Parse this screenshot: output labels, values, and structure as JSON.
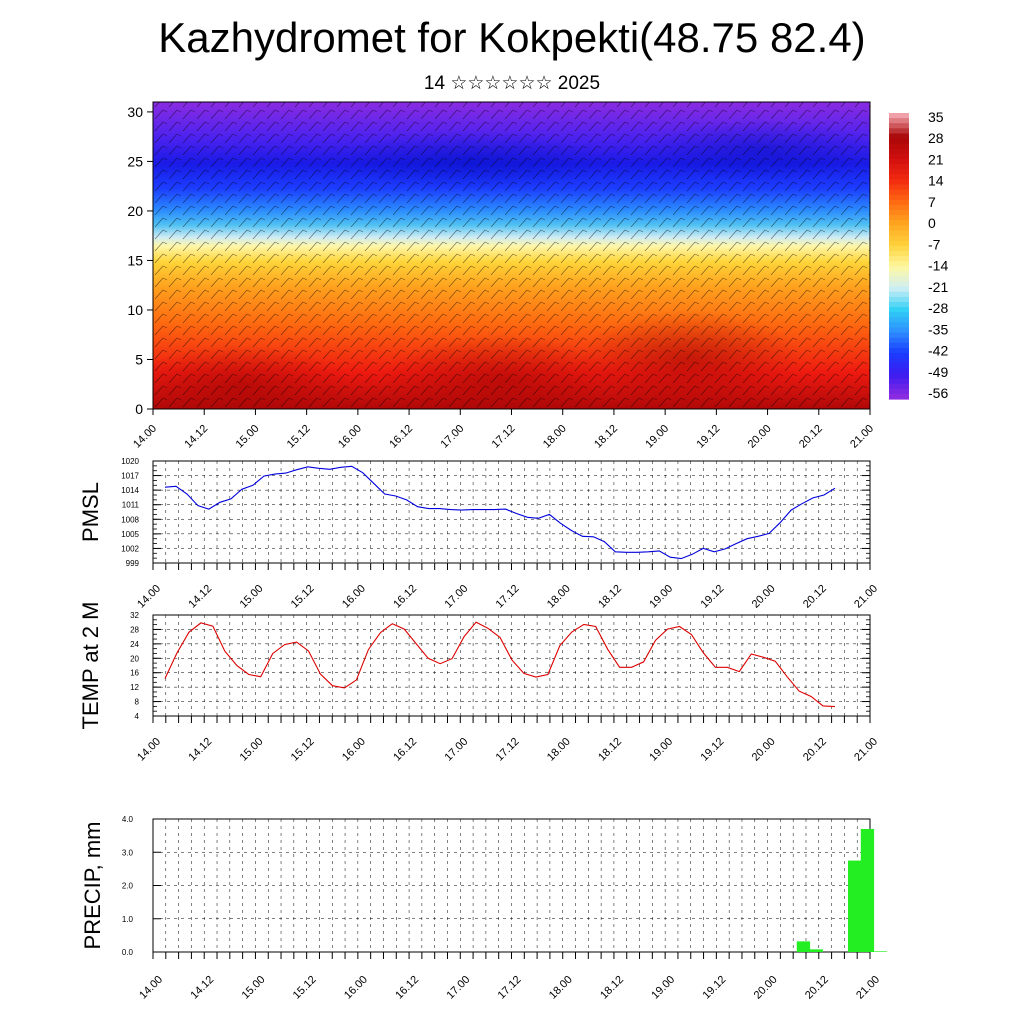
{
  "header": {
    "title": "Kazhydromet for Kokpekti(48.75 82.4)",
    "subtitle": "14 ☆☆☆☆☆☆ 2025"
  },
  "time_labels": [
    "14.00",
    "14.12",
    "15.00",
    "15.12",
    "16.00",
    "16.12",
    "17.00",
    "17.12",
    "18.00",
    "18.12",
    "19.00",
    "19.12",
    "20.00",
    "20.12",
    "21.00"
  ],
  "chart_data": [
    {
      "type": "heatmap",
      "id": "cross-section",
      "y_ticks": [
        0,
        5,
        10,
        15,
        20,
        25,
        30
      ],
      "ylim": [
        0,
        31
      ],
      "colorbar_labels": [
        "35",
        "28",
        "21",
        "14",
        "7",
        "0",
        "-7",
        "-14",
        "-21",
        "-28",
        "-35",
        "-42",
        "-49",
        "-56"
      ],
      "colormap": [
        "#8a2be2",
        "#3d1cf0",
        "#1a3cff",
        "#2e8fff",
        "#2fd0f5",
        "#cfeef5",
        "#fff8a0",
        "#ffd23c",
        "#ffa520",
        "#ff6a12",
        "#f22a10",
        "#d20f0f",
        "#a80606"
      ]
    },
    {
      "type": "line",
      "id": "pmsl",
      "ylabel": "PMSL",
      "y_ticks": [
        999,
        1002,
        1005,
        1008,
        1011,
        1014,
        1017,
        1020
      ],
      "ylim": [
        999,
        1020
      ],
      "color": "#0000dd",
      "values": [
        1014.6,
        1014.8,
        1013.2,
        1010.8,
        1010.1,
        1011.5,
        1012.2,
        1014.2,
        1015,
        1016.9,
        1017.3,
        1017.5,
        1018.2,
        1018.8,
        1018.5,
        1018.3,
        1018.7,
        1018.9,
        1017.6,
        1015.4,
        1013.2,
        1012.8,
        1012,
        1010.6,
        1010.2,
        1010.2,
        1010,
        1009.9,
        1010,
        1010,
        1010,
        1010.1,
        1009.2,
        1008.4,
        1008.2,
        1009,
        1007.2,
        1005.7,
        1004.5,
        1004.4,
        1003.4,
        1001.3,
        1001.2,
        1001.2,
        1001.3,
        1001.5,
        1000.2,
        999.9,
        1000.8,
        1002,
        1001.3,
        1001.9,
        1003,
        1004,
        1004.5,
        1005.1,
        1007.3,
        1009.9,
        1011.2,
        1012.4,
        1013,
        1014.4
      ]
    },
    {
      "type": "line",
      "id": "temp2m",
      "ylabel": "TEMP at 2 M",
      "y_ticks": [
        4,
        8,
        12,
        16,
        20,
        24,
        28,
        32
      ],
      "ylim": [
        4,
        32
      ],
      "color": "#dd0000",
      "values": [
        14.4,
        21.5,
        27.2,
        29.8,
        28.9,
        22,
        18,
        15.5,
        14.9,
        21.3,
        23.8,
        24.5,
        22,
        15.6,
        12.4,
        11.8,
        14,
        22.4,
        27.1,
        29.6,
        28.1,
        24,
        20,
        18.5,
        19.9,
        26,
        30,
        28.3,
        25.8,
        19.5,
        15.8,
        14.8,
        15.5,
        23.5,
        27.3,
        29.4,
        28.8,
        22.5,
        17.5,
        17.5,
        19,
        25,
        28.1,
        28.8,
        26.6,
        21.5,
        17.5,
        17.5,
        16.3,
        21.2,
        20.3,
        19.2,
        14.9,
        10.9,
        9.4,
        6.8,
        6.6
      ]
    },
    {
      "type": "bar",
      "id": "precip",
      "ylabel": "PRECIP, mm",
      "y_tick_labels": [
        "0.0",
        "1.0",
        "2.0",
        "3.0",
        "4.0"
      ],
      "ylim": [
        0,
        4
      ],
      "color": "#22ee22",
      "bars": [
        {
          "x": 50.0,
          "value": 0.32
        },
        {
          "x": 51.0,
          "value": 0.08
        },
        {
          "x": 54.0,
          "value": 2.75
        },
        {
          "x": 55.0,
          "value": 3.7
        },
        {
          "x": 56.0,
          "value": 0.02
        }
      ]
    }
  ]
}
